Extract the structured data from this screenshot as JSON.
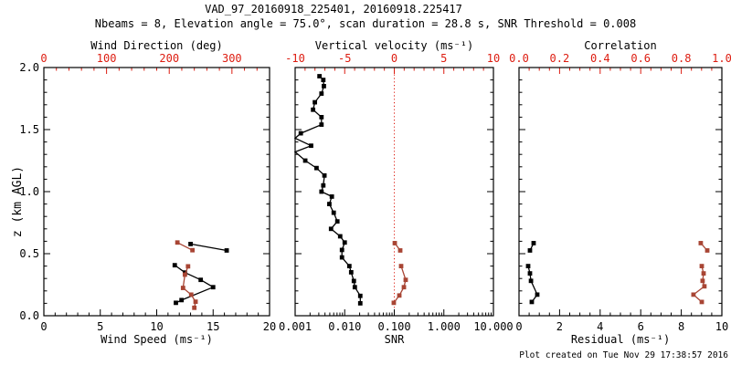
{
  "header": {
    "title": "VAD_97_20160918_225401, 20160918.225417",
    "subtitle": "Nbeams = 8, Elevation angle = 75.0°, scan duration = 28.8 s, SNR Threshold = 0.008"
  },
  "footer": {
    "text": "Plot created on Tue Nov 29 17:38:57 2016"
  },
  "colors": {
    "axis_red": "#dd1c10",
    "data_red": "#a84534",
    "black": "#000000",
    "background": "#ffffff"
  },
  "chart_data": [
    {
      "id": "wind-panel",
      "type": "line",
      "grid": false,
      "y": {
        "label": "z (km AGL)",
        "min": 0,
        "max": 2,
        "ticks": [
          0,
          0.5,
          1,
          1.5,
          2
        ],
        "tick_labels": [
          "0.0",
          "0.5",
          "1.0",
          "1.5",
          "2.0"
        ],
        "minor_step": 0.1
      },
      "x_bottom": {
        "label": "Wind Speed (ms⁻¹)",
        "min": 0,
        "max": 20,
        "ticks": [
          0,
          5,
          10,
          15,
          20
        ],
        "tick_labels": [
          "0",
          "5",
          "10",
          "15",
          "20"
        ],
        "minor_step": 1,
        "color": "#000000"
      },
      "x_top": {
        "label": "Wind Direction (deg)",
        "min": 0,
        "max": 360,
        "ticks": [
          0,
          100,
          200,
          300
        ],
        "tick_labels": [
          "0",
          "100",
          "200",
          "300"
        ],
        "minor_step": 20,
        "color": "#dd1c10"
      },
      "series": [
        {
          "name": "wind_speed",
          "axis": "bottom",
          "color": "#000000",
          "segments": [
            [
              [
                13.0,
                0.578
              ],
              [
                16.2,
                0.526
              ]
            ],
            [
              [
                11.6,
                0.407
              ],
              [
                12.5,
                0.348
              ],
              [
                13.9,
                0.289
              ],
              [
                15.0,
                0.23
              ],
              [
                12.2,
                0.126
              ],
              [
                11.7,
                0.104
              ]
            ]
          ]
        },
        {
          "name": "wind_direction",
          "axis": "top",
          "color": "#a84534",
          "segments": [
            [
              [
                213,
                0.59
              ],
              [
                237,
                0.528
              ]
            ],
            [
              [
                230,
                0.398
              ],
              [
                225,
                0.331
              ],
              [
                222,
                0.224
              ],
              [
                235,
                0.17
              ],
              [
                242,
                0.113
              ],
              [
                240,
                0.064
              ]
            ]
          ]
        }
      ]
    },
    {
      "id": "snr-panel",
      "type": "line",
      "grid": false,
      "y": {
        "min": 0,
        "max": 2,
        "ticks": [
          0,
          0.5,
          1,
          1.5,
          2
        ],
        "minor_step": 0.1
      },
      "x_bottom": {
        "label": "SNR",
        "scale": "log",
        "min": 0.001,
        "max": 10,
        "ticks": [
          0.001,
          0.01,
          0.1,
          1,
          10
        ],
        "tick_labels": [
          "0.001",
          "0.010",
          "0.100",
          "1.000",
          "10.000"
        ],
        "color": "#000000"
      },
      "x_top": {
        "label": "Vertical velocity (ms⁻¹)",
        "min": -10,
        "max": 10,
        "ticks": [
          -10,
          -5,
          0,
          5,
          10
        ],
        "tick_labels": [
          "-10",
          "-5",
          "0",
          "5",
          "10"
        ],
        "minor_step": 1,
        "color": "#dd1c10"
      },
      "refline": {
        "name": "zero-vertical-velocity",
        "axis": "top",
        "value": 0,
        "style": "dotted",
        "color": "#dd1c10"
      },
      "series": [
        {
          "name": "snr_profile",
          "axis": "bottom",
          "color": "#000000",
          "segments": [
            [
              [
                0.0031,
                1.93
              ],
              [
                0.0037,
                1.9
              ],
              [
                0.0038,
                1.85
              ],
              [
                0.0034,
                1.79
              ],
              [
                0.0025,
                1.72
              ],
              [
                0.0023,
                1.66
              ],
              [
                0.0034,
                1.6
              ],
              [
                0.0034,
                1.54
              ],
              [
                0.0013,
                1.47
              ],
              [
                0.001,
                1.43
              ],
              [
                0.0021,
                1.37
              ],
              [
                0.001,
                1.32
              ],
              [
                0.0016,
                1.25
              ],
              [
                0.0027,
                1.19
              ],
              [
                0.0039,
                1.13
              ],
              [
                0.0037,
                1.05
              ],
              [
                0.0034,
                1.0
              ],
              [
                0.0055,
                0.96
              ],
              [
                0.0049,
                0.9
              ],
              [
                0.006,
                0.83
              ],
              [
                0.0071,
                0.76
              ],
              [
                0.0053,
                0.7
              ],
              [
                0.0081,
                0.64
              ],
              [
                0.01,
                0.59
              ],
              [
                0.0088,
                0.53
              ],
              [
                0.0088,
                0.47
              ],
              [
                0.0124,
                0.4
              ],
              [
                0.0135,
                0.35
              ],
              [
                0.0153,
                0.28
              ],
              [
                0.016,
                0.23
              ],
              [
                0.0206,
                0.16
              ],
              [
                0.0206,
                0.1
              ]
            ]
          ]
        },
        {
          "name": "vertical_velocity",
          "axis": "top",
          "color": "#a84534",
          "segments": [
            [
              [
                0.05,
                0.585
              ],
              [
                0.6,
                0.526
              ]
            ],
            [
              [
                0.69,
                0.4
              ],
              [
                1.15,
                0.289
              ],
              [
                0.97,
                0.23
              ],
              [
                0.51,
                0.163
              ],
              [
                -0.05,
                0.104
              ]
            ]
          ]
        }
      ]
    },
    {
      "id": "residual-panel",
      "type": "line",
      "grid": false,
      "y": {
        "min": 0,
        "max": 2,
        "ticks": [
          0,
          0.5,
          1,
          1.5,
          2
        ],
        "minor_step": 0.1
      },
      "x_bottom": {
        "label": "Residual (ms⁻¹)",
        "min": 0,
        "max": 10,
        "ticks": [
          0,
          2,
          4,
          6,
          8,
          10
        ],
        "tick_labels": [
          "0",
          "2",
          "4",
          "6",
          "8",
          "10"
        ],
        "minor_step": 0.5,
        "color": "#000000"
      },
      "x_top": {
        "label": "Correlation",
        "min": 0,
        "max": 1,
        "ticks": [
          0,
          0.2,
          0.4,
          0.6,
          0.8,
          1
        ],
        "tick_labels": [
          "0.0",
          "0.2",
          "0.4",
          "0.6",
          "0.8",
          "1.0"
        ],
        "minor_step": 0.05,
        "color": "#dd1c10"
      },
      "series": [
        {
          "name": "residual",
          "axis": "bottom",
          "color": "#000000",
          "segments": [
            [
              [
                0.72,
                0.585
              ],
              [
                0.54,
                0.526
              ]
            ],
            [
              [
                0.45,
                0.4
              ],
              [
                0.54,
                0.341
              ],
              [
                0.59,
                0.281
              ],
              [
                0.9,
                0.17
              ],
              [
                0.63,
                0.111
              ]
            ]
          ]
        },
        {
          "name": "correlation",
          "axis": "top",
          "color": "#a84534",
          "segments": [
            [
              [
                0.896,
                0.585
              ],
              [
                0.928,
                0.526
              ]
            ],
            [
              [
                0.901,
                0.4
              ],
              [
                0.91,
                0.341
              ],
              [
                0.905,
                0.281
              ],
              [
                0.914,
                0.237
              ],
              [
                0.86,
                0.17
              ],
              [
                0.901,
                0.111
              ]
            ]
          ]
        }
      ]
    }
  ]
}
